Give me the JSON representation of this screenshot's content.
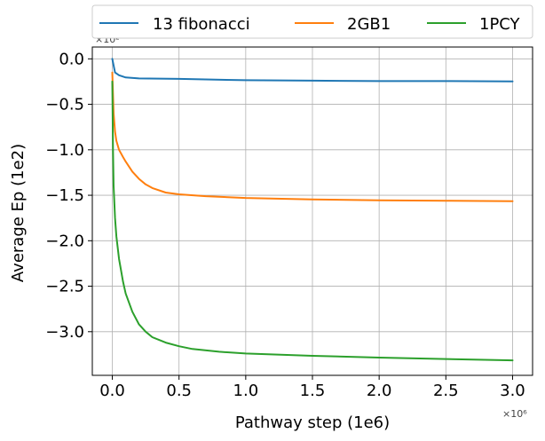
{
  "chart_data": {
    "type": "line",
    "title": "",
    "xlabel": "Pathway step (1e6)",
    "ylabel": "Average Ep (1e2)",
    "x_offset_label": "×10⁶",
    "y_offset_label": "×10²",
    "xlim": [
      -0.15,
      3.15
    ],
    "ylim": [
      -3.48,
      0.13
    ],
    "xticks": [
      0.0,
      0.5,
      1.0,
      1.5,
      2.0,
      2.5,
      3.0
    ],
    "xtick_labels": [
      "0.0",
      "0.5",
      "1.0",
      "1.5",
      "2.0",
      "2.5",
      "3.0"
    ],
    "yticks": [
      0.0,
      -0.5,
      -1.0,
      -1.5,
      -2.0,
      -2.5,
      -3.0
    ],
    "ytick_labels": [
      "0.0",
      "−0.5",
      "−1.0",
      "−1.5",
      "−2.0",
      "−2.5",
      "−3.0"
    ],
    "grid": true,
    "legend_position": "top-outside",
    "series": [
      {
        "name": "13 fibonacci",
        "color": "#1f77b4",
        "x": [
          0.0,
          0.02,
          0.05,
          0.1,
          0.2,
          0.5,
          1.0,
          1.5,
          2.0,
          2.5,
          3.0
        ],
        "y": [
          0.0,
          -0.15,
          -0.18,
          -0.205,
          -0.215,
          -0.22,
          -0.235,
          -0.24,
          -0.245,
          -0.245,
          -0.248
        ]
      },
      {
        "name": "2GB1",
        "color": "#ff7f0e",
        "x": [
          0.0,
          0.01,
          0.02,
          0.03,
          0.05,
          0.08,
          0.1,
          0.15,
          0.2,
          0.25,
          0.3,
          0.4,
          0.5,
          0.7,
          1.0,
          1.5,
          2.0,
          2.5,
          3.0
        ],
        "y": [
          -0.15,
          -0.6,
          -0.8,
          -0.9,
          -1.0,
          -1.08,
          -1.13,
          -1.24,
          -1.32,
          -1.38,
          -1.42,
          -1.47,
          -1.49,
          -1.51,
          -1.53,
          -1.545,
          -1.555,
          -1.56,
          -1.565
        ]
      },
      {
        "name": "1PCY",
        "color": "#2ca02c",
        "x": [
          0.0,
          0.005,
          0.01,
          0.02,
          0.03,
          0.05,
          0.08,
          0.1,
          0.15,
          0.2,
          0.25,
          0.3,
          0.4,
          0.5,
          0.6,
          0.8,
          1.0,
          1.5,
          2.0,
          2.5,
          3.0
        ],
        "y": [
          -0.25,
          -1.0,
          -1.4,
          -1.75,
          -1.95,
          -2.2,
          -2.45,
          -2.58,
          -2.78,
          -2.92,
          -3.0,
          -3.06,
          -3.12,
          -3.16,
          -3.19,
          -3.22,
          -3.24,
          -3.265,
          -3.285,
          -3.3,
          -3.315
        ]
      }
    ]
  }
}
